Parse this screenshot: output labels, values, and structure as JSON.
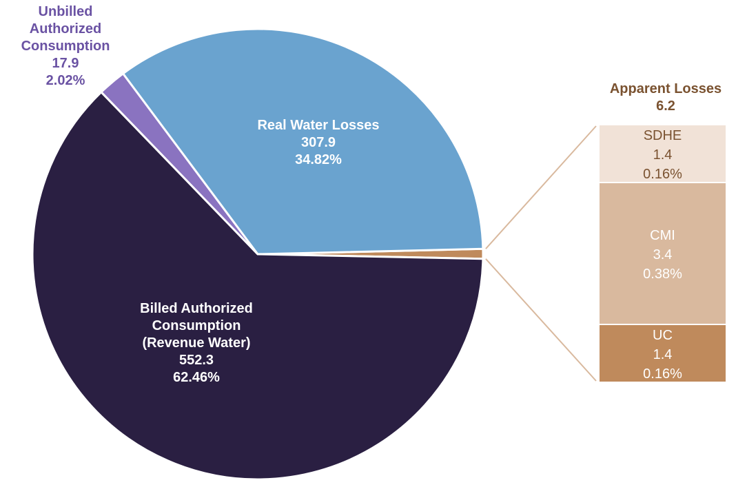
{
  "chart_data": {
    "type": "pie",
    "title": "",
    "colors": {
      "billed": "#2a1f42",
      "unbilled": "#8a73c0",
      "real": "#6aa3cf",
      "apparent": "#bf8a5c",
      "connector": "#d9b99e",
      "unbilled_label": "#6a52a3",
      "apparent_label": "#7a5230"
    },
    "slices": [
      {
        "key": "billed",
        "label_lines": [
          "Billed  Authorized",
          "Consumption",
          "(Revenue Water)"
        ],
        "value": 552.3,
        "value_text": "552.3",
        "percent": 62.46,
        "percent_text": "62.46%"
      },
      {
        "key": "unbilled",
        "label_lines": [
          "Unbilled",
          "Authorized",
          "Consumption"
        ],
        "value": 17.9,
        "value_text": "17.9",
        "percent": 2.02,
        "percent_text": "2.02%"
      },
      {
        "key": "real",
        "label_lines": [
          "Real Water Losses"
        ],
        "value": 307.9,
        "value_text": "307.9",
        "percent": 34.82,
        "percent_text": "34.82%"
      },
      {
        "key": "apparent",
        "label_lines": [
          "Apparent Losses"
        ],
        "value": 6.2,
        "value_text": "6.2",
        "percent": 0.7,
        "percent_text": ""
      }
    ],
    "breakdown": {
      "parent": "apparent",
      "title": "Apparent Losses",
      "value_text": "6.2",
      "items": [
        {
          "key": "sdhe",
          "label": "SDHE",
          "value": 1.4,
          "value_text": "1.4",
          "percent": 0.16,
          "percent_text": "0.16%",
          "color": "#f1e2d7",
          "text_color": "#7a5230"
        },
        {
          "key": "cmi",
          "label": "CMI",
          "value": 3.4,
          "value_text": "3.4",
          "percent": 0.38,
          "percent_text": "0.38%",
          "color": "#d9b99e",
          "text_color": "#ffffff"
        },
        {
          "key": "uc",
          "label": "UC",
          "value": 1.4,
          "value_text": "1.4",
          "percent": 0.16,
          "percent_text": "0.16%",
          "color": "#bf8a5c",
          "text_color": "#ffffff"
        }
      ]
    }
  }
}
